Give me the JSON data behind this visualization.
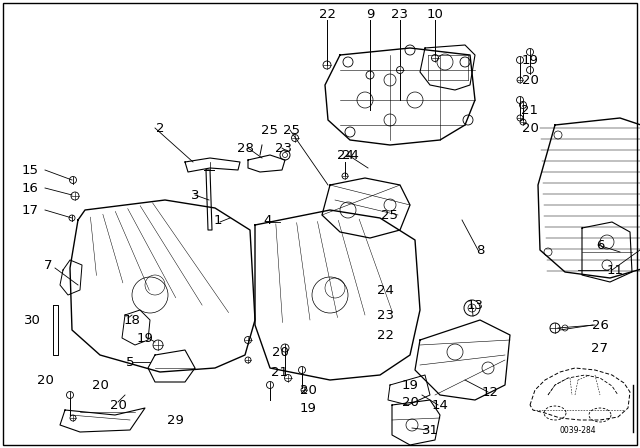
{
  "bg_color": "#ffffff",
  "fig_width": 6.4,
  "fig_height": 4.48,
  "dpi": 100,
  "diagram_code": "0039-284",
  "text_color": "#000000",
  "part_fontsize": 7.5,
  "part_fontsize_large": 9.5,
  "line_color": "#000000"
}
